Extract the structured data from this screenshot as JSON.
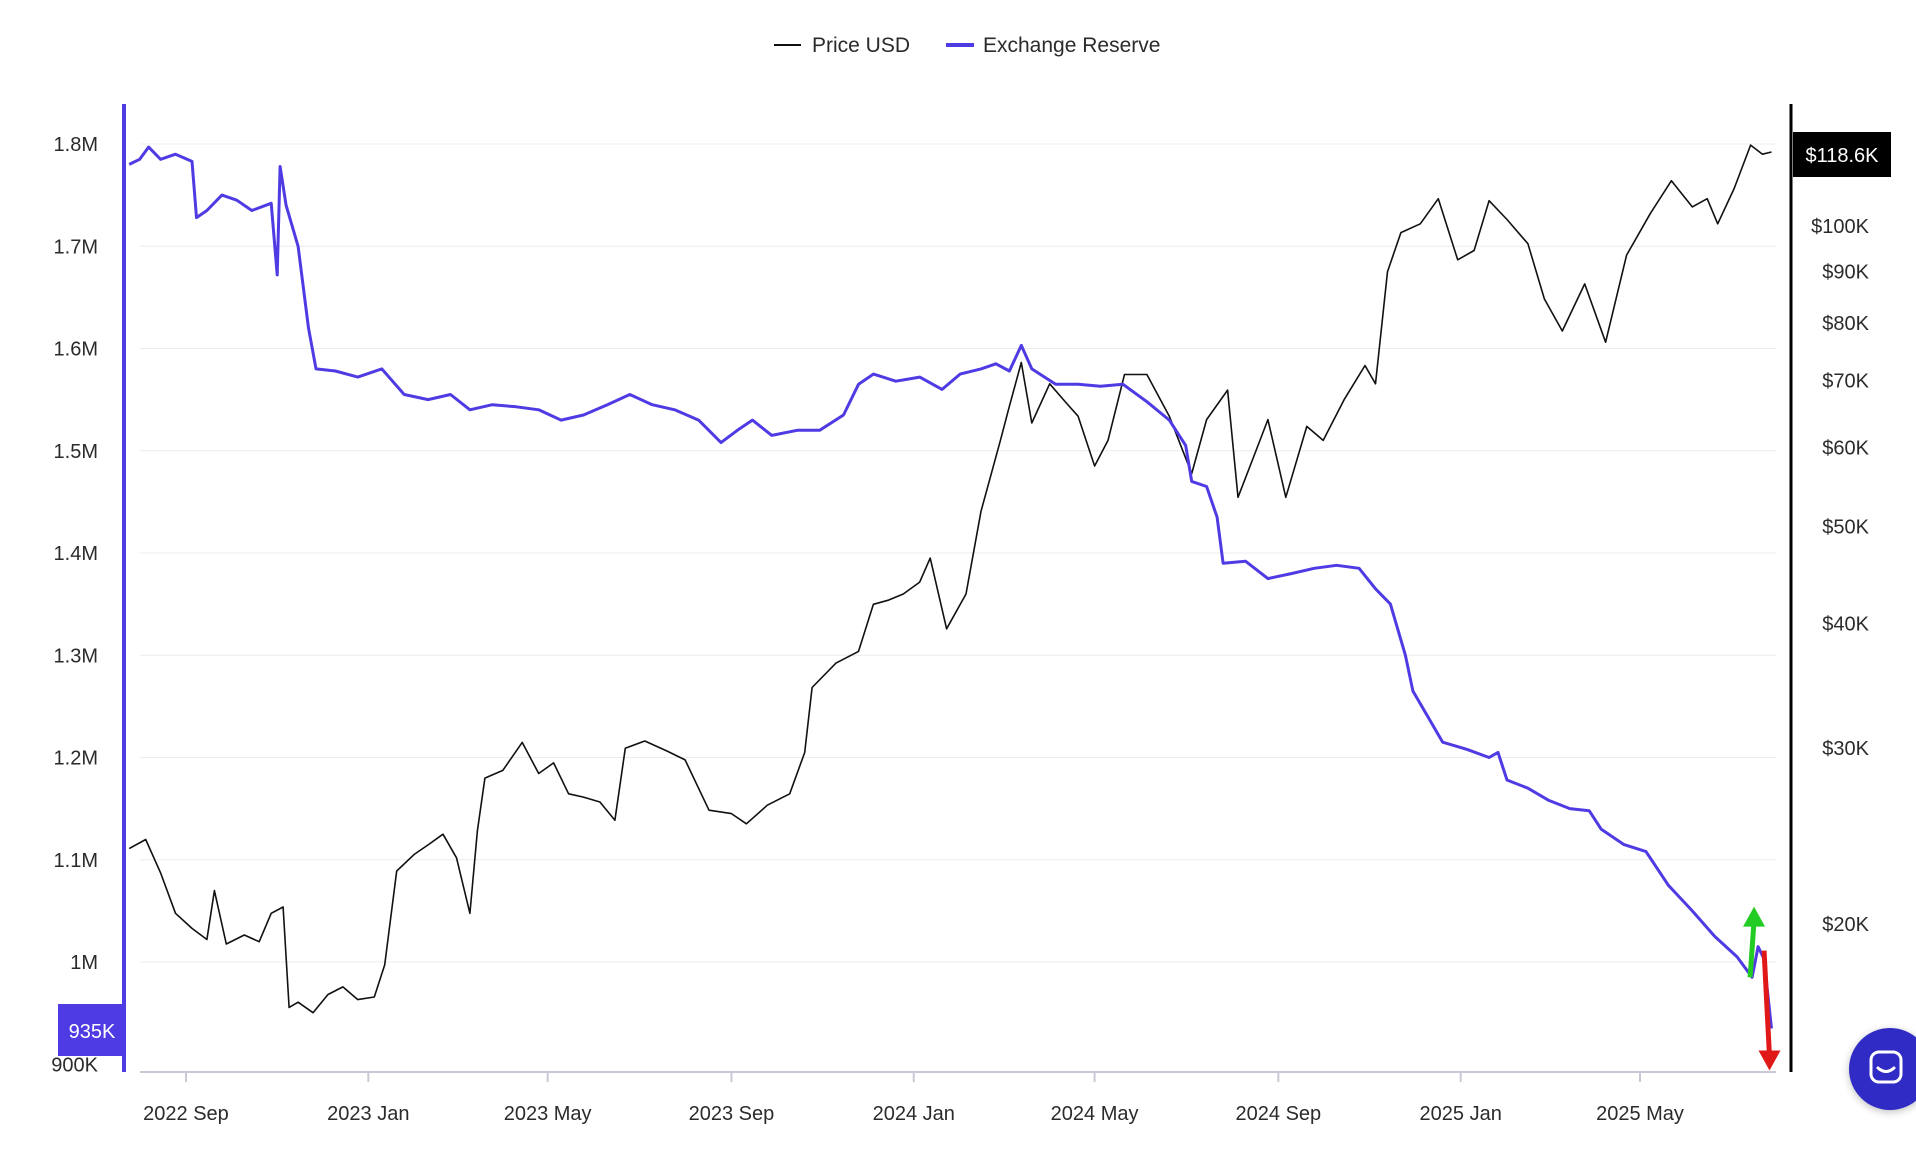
{
  "legend": {
    "price_label": "Price USD",
    "reserve_label": "Exchange Reserve"
  },
  "colors": {
    "price": "#111111",
    "reserve": "#4f3be3",
    "up_arrow": "#22cc22",
    "down_arrow": "#e01818",
    "grid": "#ececec"
  },
  "badges": {
    "current_price": "$118.6K",
    "current_reserve": "935K"
  },
  "chart_data": {
    "type": "line",
    "x_ticks": [
      "2022 Sep",
      "2023 Jan",
      "2023 May",
      "2023 Sep",
      "2024 Jan",
      "2024 May",
      "2024 Sep",
      "2025 Jan",
      "2025 May"
    ],
    "y_left": {
      "scale": "linear",
      "range": [
        900000,
        1820000
      ],
      "ticks": [
        {
          "value": 1800000,
          "label": "1.8M"
        },
        {
          "value": 1700000,
          "label": "1.7M"
        },
        {
          "value": 1600000,
          "label": "1.6M"
        },
        {
          "value": 1500000,
          "label": "1.5M"
        },
        {
          "value": 1400000,
          "label": "1.4M"
        },
        {
          "value": 1300000,
          "label": "1.3M"
        },
        {
          "value": 1200000,
          "label": "1.2M"
        },
        {
          "value": 1100000,
          "label": "1.1M"
        },
        {
          "value": 1000000,
          "label": "1M"
        },
        {
          "value": 900000,
          "label": "900K"
        }
      ]
    },
    "y_right": {
      "scale": "log",
      "ticks": [
        {
          "value": 100000,
          "label": "$100K"
        },
        {
          "value": 90000,
          "label": "$90K"
        },
        {
          "value": 80000,
          "label": "$80K"
        },
        {
          "value": 70000,
          "label": "$70K"
        },
        {
          "value": 60000,
          "label": "$60K"
        },
        {
          "value": 50000,
          "label": "$50K"
        },
        {
          "value": 40000,
          "label": "$40K"
        },
        {
          "value": 30000,
          "label": "$30K"
        },
        {
          "value": 20000,
          "label": "$20K"
        }
      ]
    },
    "grid": true,
    "legend_position": "top-center",
    "series": [
      {
        "name": "Price USD",
        "axis": "right",
        "points": [
          [
            "2022-07-25",
            23800
          ],
          [
            "2022-08-05",
            24300
          ],
          [
            "2022-08-15",
            22500
          ],
          [
            "2022-08-25",
            20500
          ],
          [
            "2022-09-05",
            19800
          ],
          [
            "2022-09-15",
            19300
          ],
          [
            "2022-09-20",
            21600
          ],
          [
            "2022-09-28",
            19100
          ],
          [
            "2022-10-10",
            19500
          ],
          [
            "2022-10-20",
            19200
          ],
          [
            "2022-10-28",
            20500
          ],
          [
            "2022-11-05",
            20800
          ],
          [
            "2022-11-09",
            16500
          ],
          [
            "2022-11-15",
            16700
          ],
          [
            "2022-11-25",
            16300
          ],
          [
            "2022-12-05",
            17000
          ],
          [
            "2022-12-15",
            17300
          ],
          [
            "2022-12-25",
            16800
          ],
          [
            "2023-01-05",
            16900
          ],
          [
            "2023-01-12",
            18200
          ],
          [
            "2023-01-20",
            22600
          ],
          [
            "2023-02-01",
            23500
          ],
          [
            "2023-02-10",
            24000
          ],
          [
            "2023-02-20",
            24600
          ],
          [
            "2023-03-01",
            23300
          ],
          [
            "2023-03-10",
            20500
          ],
          [
            "2023-03-15",
            24800
          ],
          [
            "2023-03-20",
            28000
          ],
          [
            "2023-04-01",
            28500
          ],
          [
            "2023-04-14",
            30400
          ],
          [
            "2023-04-25",
            28300
          ],
          [
            "2023-05-05",
            29000
          ],
          [
            "2023-05-15",
            27000
          ],
          [
            "2023-05-25",
            26800
          ],
          [
            "2023-06-05",
            26500
          ],
          [
            "2023-06-15",
            25400
          ],
          [
            "2023-06-22",
            30000
          ],
          [
            "2023-07-05",
            30500
          ],
          [
            "2023-07-20",
            29800
          ],
          [
            "2023-08-01",
            29200
          ],
          [
            "2023-08-17",
            26000
          ],
          [
            "2023-09-01",
            25800
          ],
          [
            "2023-09-11",
            25200
          ],
          [
            "2023-09-25",
            26300
          ],
          [
            "2023-10-10",
            27000
          ],
          [
            "2023-10-20",
            29700
          ],
          [
            "2023-10-25",
            34500
          ],
          [
            "2023-11-10",
            36500
          ],
          [
            "2023-11-25",
            37500
          ],
          [
            "2023-12-05",
            41800
          ],
          [
            "2023-12-15",
            42200
          ],
          [
            "2023-12-25",
            42800
          ],
          [
            "2024-01-05",
            44000
          ],
          [
            "2024-01-12",
            46500
          ],
          [
            "2024-01-23",
            39500
          ],
          [
            "2024-02-05",
            42800
          ],
          [
            "2024-02-15",
            51800
          ],
          [
            "2024-02-28",
            61000
          ],
          [
            "2024-03-05",
            66000
          ],
          [
            "2024-03-13",
            73000
          ],
          [
            "2024-03-20",
            63500
          ],
          [
            "2024-04-01",
            69500
          ],
          [
            "2024-04-12",
            66500
          ],
          [
            "2024-04-20",
            64500
          ],
          [
            "2024-05-01",
            57500
          ],
          [
            "2024-05-10",
            61000
          ],
          [
            "2024-05-21",
            71000
          ],
          [
            "2024-06-05",
            71000
          ],
          [
            "2024-06-20",
            64500
          ],
          [
            "2024-07-05",
            56500
          ],
          [
            "2024-07-15",
            64000
          ],
          [
            "2024-07-29",
            68500
          ],
          [
            "2024-08-05",
            53500
          ],
          [
            "2024-08-15",
            58500
          ],
          [
            "2024-08-25",
            64000
          ],
          [
            "2024-09-06",
            53500
          ],
          [
            "2024-09-20",
            63000
          ],
          [
            "2024-10-01",
            61000
          ],
          [
            "2024-10-15",
            67000
          ],
          [
            "2024-10-29",
            72500
          ],
          [
            "2024-11-05",
            69500
          ],
          [
            "2024-11-13",
            90000
          ],
          [
            "2024-11-22",
            98500
          ],
          [
            "2024-12-05",
            100500
          ],
          [
            "2024-12-17",
            106500
          ],
          [
            "2024-12-30",
            92500
          ],
          [
            "2025-01-10",
            94500
          ],
          [
            "2025-01-20",
            106000
          ],
          [
            "2025-02-01",
            101500
          ],
          [
            "2025-02-15",
            96000
          ],
          [
            "2025-02-26",
            84500
          ],
          [
            "2025-03-10",
            78500
          ],
          [
            "2025-03-25",
            87500
          ],
          [
            "2025-04-08",
            76500
          ],
          [
            "2025-04-22",
            93500
          ],
          [
            "2025-05-08",
            103000
          ],
          [
            "2025-05-22",
            111000
          ],
          [
            "2025-06-05",
            104500
          ],
          [
            "2025-06-15",
            106500
          ],
          [
            "2025-06-22",
            100500
          ],
          [
            "2025-07-03",
            109000
          ],
          [
            "2025-07-14",
            120500
          ],
          [
            "2025-07-22",
            118000
          ],
          [
            "2025-07-28",
            118600
          ]
        ]
      },
      {
        "name": "Exchange Reserve",
        "axis": "left",
        "points": [
          [
            "2022-07-25",
            1780000
          ],
          [
            "2022-08-01",
            1785000
          ],
          [
            "2022-08-07",
            1797000
          ],
          [
            "2022-08-15",
            1785000
          ],
          [
            "2022-08-25",
            1790000
          ],
          [
            "2022-09-05",
            1783000
          ],
          [
            "2022-09-08",
            1728000
          ],
          [
            "2022-09-15",
            1735000
          ],
          [
            "2022-09-25",
            1750000
          ],
          [
            "2022-10-05",
            1745000
          ],
          [
            "2022-10-15",
            1735000
          ],
          [
            "2022-10-28",
            1742000
          ],
          [
            "2022-11-01",
            1672000
          ],
          [
            "2022-11-03",
            1778000
          ],
          [
            "2022-11-07",
            1740000
          ],
          [
            "2022-11-15",
            1700000
          ],
          [
            "2022-11-22",
            1620000
          ],
          [
            "2022-11-27",
            1580000
          ],
          [
            "2022-12-10",
            1578000
          ],
          [
            "2022-12-25",
            1572000
          ],
          [
            "2023-01-10",
            1580000
          ],
          [
            "2023-01-25",
            1555000
          ],
          [
            "2023-02-10",
            1550000
          ],
          [
            "2023-02-25",
            1555000
          ],
          [
            "2023-03-10",
            1540000
          ],
          [
            "2023-03-25",
            1545000
          ],
          [
            "2023-04-10",
            1543000
          ],
          [
            "2023-04-25",
            1540000
          ],
          [
            "2023-05-10",
            1530000
          ],
          [
            "2023-05-25",
            1535000
          ],
          [
            "2023-06-10",
            1545000
          ],
          [
            "2023-06-25",
            1555000
          ],
          [
            "2023-07-10",
            1545000
          ],
          [
            "2023-07-25",
            1540000
          ],
          [
            "2023-08-10",
            1530000
          ],
          [
            "2023-08-25",
            1508000
          ],
          [
            "2023-09-05",
            1520000
          ],
          [
            "2023-09-15",
            1530000
          ],
          [
            "2023-09-28",
            1515000
          ],
          [
            "2023-10-15",
            1520000
          ],
          [
            "2023-10-30",
            1520000
          ],
          [
            "2023-11-15",
            1535000
          ],
          [
            "2023-11-25",
            1565000
          ],
          [
            "2023-12-05",
            1575000
          ],
          [
            "2023-12-20",
            1568000
          ],
          [
            "2024-01-05",
            1572000
          ],
          [
            "2024-01-20",
            1560000
          ],
          [
            "2024-02-01",
            1575000
          ],
          [
            "2024-02-15",
            1580000
          ],
          [
            "2024-02-25",
            1585000
          ],
          [
            "2024-03-05",
            1578000
          ],
          [
            "2024-03-13",
            1603000
          ],
          [
            "2024-03-20",
            1580000
          ],
          [
            "2024-04-05",
            1565000
          ],
          [
            "2024-04-20",
            1565000
          ],
          [
            "2024-05-05",
            1563000
          ],
          [
            "2024-05-20",
            1565000
          ],
          [
            "2024-06-05",
            1548000
          ],
          [
            "2024-06-20",
            1530000
          ],
          [
            "2024-07-01",
            1505000
          ],
          [
            "2024-07-05",
            1470000
          ],
          [
            "2024-07-15",
            1465000
          ],
          [
            "2024-07-22",
            1435000
          ],
          [
            "2024-07-26",
            1390000
          ],
          [
            "2024-08-10",
            1392000
          ],
          [
            "2024-08-25",
            1375000
          ],
          [
            "2024-09-10",
            1380000
          ],
          [
            "2024-09-25",
            1385000
          ],
          [
            "2024-10-10",
            1388000
          ],
          [
            "2024-10-25",
            1385000
          ],
          [
            "2024-11-05",
            1365000
          ],
          [
            "2024-11-15",
            1350000
          ],
          [
            "2024-11-25",
            1300000
          ],
          [
            "2024-11-30",
            1265000
          ],
          [
            "2024-12-10",
            1240000
          ],
          [
            "2024-12-20",
            1215000
          ],
          [
            "2025-01-05",
            1208000
          ],
          [
            "2025-01-20",
            1200000
          ],
          [
            "2025-01-26",
            1205000
          ],
          [
            "2025-02-01",
            1178000
          ],
          [
            "2025-02-15",
            1170000
          ],
          [
            "2025-03-01",
            1158000
          ],
          [
            "2025-03-15",
            1150000
          ],
          [
            "2025-03-28",
            1148000
          ],
          [
            "2025-04-05",
            1130000
          ],
          [
            "2025-04-20",
            1115000
          ],
          [
            "2025-05-05",
            1108000
          ],
          [
            "2025-05-20",
            1075000
          ],
          [
            "2025-06-05",
            1050000
          ],
          [
            "2025-06-20",
            1025000
          ],
          [
            "2025-07-05",
            1005000
          ],
          [
            "2025-07-15",
            985000
          ],
          [
            "2025-07-19",
            1015000
          ],
          [
            "2025-07-23",
            1003000
          ],
          [
            "2025-07-28",
            935000
          ]
        ]
      }
    ]
  }
}
